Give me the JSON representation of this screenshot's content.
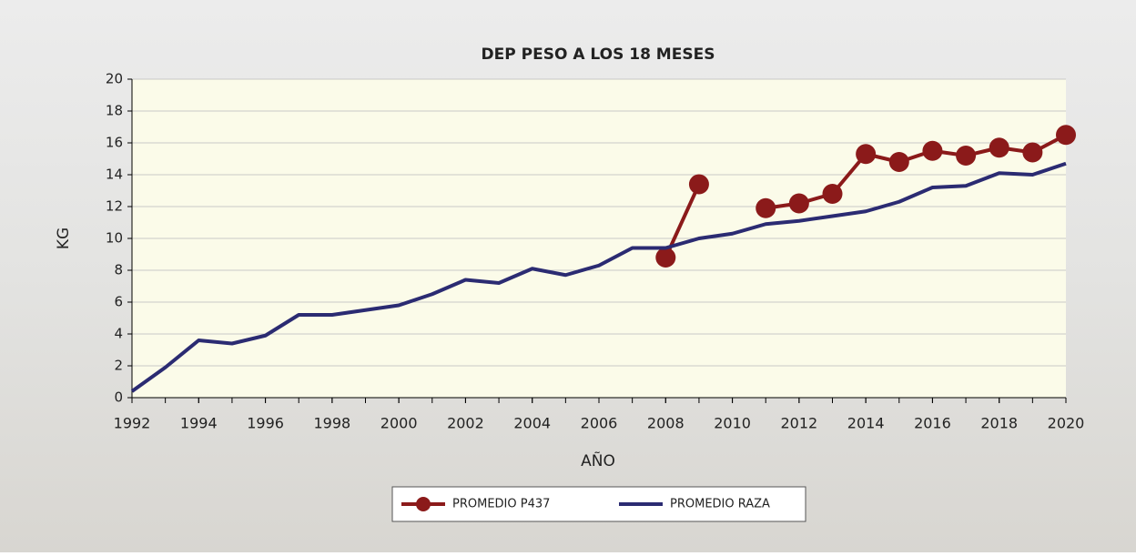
{
  "chart_data": {
    "type": "line",
    "title": "DEP PESO A LOS 18 MESES",
    "x_label": "AÑO",
    "y_label": "KG",
    "x": [
      1992,
      1993,
      1994,
      1995,
      1996,
      1997,
      1998,
      1999,
      2000,
      2001,
      2002,
      2003,
      2004,
      2005,
      2006,
      2007,
      2008,
      2009,
      2010,
      2011,
      2012,
      2013,
      2014,
      2015,
      2016,
      2017,
      2018,
      2019,
      2020
    ],
    "series": [
      {
        "name": "PROMEDIO P437",
        "color": "#8b1a1a",
        "markers": true,
        "values": [
          null,
          null,
          null,
          null,
          null,
          null,
          null,
          null,
          null,
          null,
          null,
          null,
          null,
          null,
          null,
          null,
          8.8,
          13.4,
          null,
          11.9,
          12.2,
          12.8,
          15.3,
          14.8,
          15.5,
          15.2,
          15.7,
          15.4,
          16.5
        ]
      },
      {
        "name": "PROMEDIO RAZA",
        "color": "#2b2b72",
        "markers": false,
        "values": [
          0.4,
          1.9,
          3.6,
          3.4,
          3.9,
          5.2,
          5.2,
          5.5,
          5.8,
          6.5,
          7.4,
          7.2,
          8.1,
          7.7,
          8.3,
          9.4,
          9.4,
          10.0,
          10.3,
          10.9,
          11.1,
          11.4,
          11.7,
          12.3,
          13.2,
          13.3,
          14.1,
          14.0,
          14.7
        ]
      }
    ],
    "xlim": [
      1992,
      2020
    ],
    "xticks": [
      1992,
      1994,
      1996,
      1998,
      2000,
      2002,
      2004,
      2006,
      2008,
      2010,
      2012,
      2014,
      2016,
      2018,
      2020
    ],
    "ylim": [
      0,
      20
    ],
    "yticks": [
      0,
      2,
      4,
      6,
      8,
      10,
      12,
      14,
      16,
      18,
      20
    ],
    "grid": true,
    "legend": "bottom"
  }
}
